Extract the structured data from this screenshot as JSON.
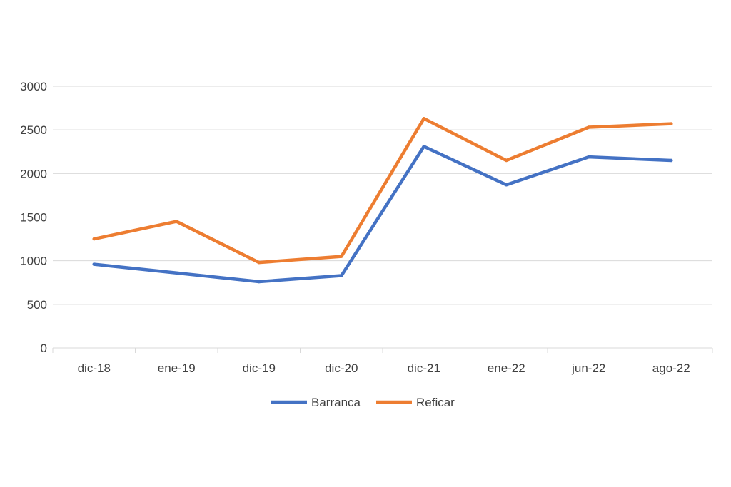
{
  "chart_data": {
    "type": "line",
    "title": "",
    "xlabel": "",
    "ylabel": "",
    "categories": [
      "dic-18",
      "ene-19",
      "dic-19",
      "dic-20",
      "dic-21",
      "ene-22",
      "jun-22",
      "ago-22"
    ],
    "ylim": [
      0,
      3000
    ],
    "yticks": [
      0,
      500,
      1000,
      1500,
      2000,
      2500,
      3000
    ],
    "grid": true,
    "legend_position": "bottom",
    "series": [
      {
        "name": "Barranca",
        "color": "#4472C4",
        "values": [
          960,
          860,
          760,
          830,
          2310,
          1870,
          2190,
          2150
        ]
      },
      {
        "name": "Reficar",
        "color": "#ED7D31",
        "values": [
          1250,
          1450,
          980,
          1050,
          2630,
          2150,
          2530,
          2570
        ]
      }
    ]
  }
}
